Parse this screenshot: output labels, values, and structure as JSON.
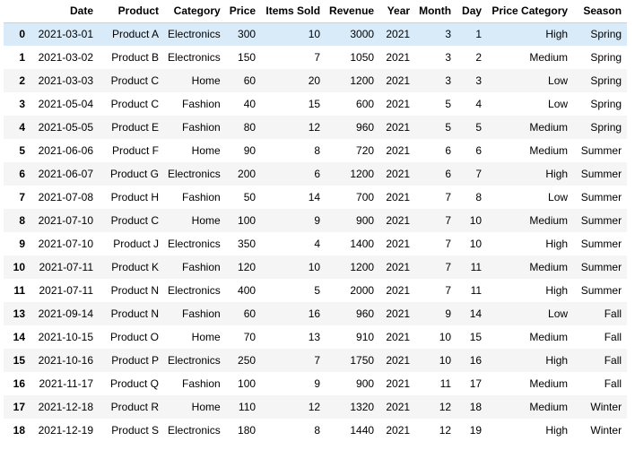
{
  "table": {
    "index_header": "",
    "columns": [
      "Date",
      "Product",
      "Category",
      "Price",
      "Items Sold",
      "Revenue",
      "Year",
      "Month",
      "Day",
      "Price Category",
      "Season"
    ],
    "highlighted_row": 0,
    "rows": [
      {
        "index": "0",
        "cells": [
          "2021-03-01",
          "Product A",
          "Electronics",
          "300",
          "10",
          "3000",
          "2021",
          "3",
          "1",
          "High",
          "Spring"
        ]
      },
      {
        "index": "1",
        "cells": [
          "2021-03-02",
          "Product B",
          "Electronics",
          "150",
          "7",
          "1050",
          "2021",
          "3",
          "2",
          "Medium",
          "Spring"
        ]
      },
      {
        "index": "2",
        "cells": [
          "2021-03-03",
          "Product C",
          "Home",
          "60",
          "20",
          "1200",
          "2021",
          "3",
          "3",
          "Low",
          "Spring"
        ]
      },
      {
        "index": "3",
        "cells": [
          "2021-05-04",
          "Product C",
          "Fashion",
          "40",
          "15",
          "600",
          "2021",
          "5",
          "4",
          "Low",
          "Spring"
        ]
      },
      {
        "index": "4",
        "cells": [
          "2021-05-05",
          "Product E",
          "Fashion",
          "80",
          "12",
          "960",
          "2021",
          "5",
          "5",
          "Medium",
          "Spring"
        ]
      },
      {
        "index": "5",
        "cells": [
          "2021-06-06",
          "Product F",
          "Home",
          "90",
          "8",
          "720",
          "2021",
          "6",
          "6",
          "Medium",
          "Summer"
        ]
      },
      {
        "index": "6",
        "cells": [
          "2021-06-07",
          "Product G",
          "Electronics",
          "200",
          "6",
          "1200",
          "2021",
          "6",
          "7",
          "High",
          "Summer"
        ]
      },
      {
        "index": "7",
        "cells": [
          "2021-07-08",
          "Product H",
          "Fashion",
          "50",
          "14",
          "700",
          "2021",
          "7",
          "8",
          "Low",
          "Summer"
        ]
      },
      {
        "index": "8",
        "cells": [
          "2021-07-10",
          "Product C",
          "Home",
          "100",
          "9",
          "900",
          "2021",
          "7",
          "10",
          "Medium",
          "Summer"
        ]
      },
      {
        "index": "9",
        "cells": [
          "2021-07-10",
          "Product J",
          "Electronics",
          "350",
          "4",
          "1400",
          "2021",
          "7",
          "10",
          "High",
          "Summer"
        ]
      },
      {
        "index": "10",
        "cells": [
          "2021-07-11",
          "Product K",
          "Fashion",
          "120",
          "10",
          "1200",
          "2021",
          "7",
          "11",
          "Medium",
          "Summer"
        ]
      },
      {
        "index": "11",
        "cells": [
          "2021-07-11",
          "Product N",
          "Electronics",
          "400",
          "5",
          "2000",
          "2021",
          "7",
          "11",
          "High",
          "Summer"
        ]
      },
      {
        "index": "13",
        "cells": [
          "2021-09-14",
          "Product N",
          "Fashion",
          "60",
          "16",
          "960",
          "2021",
          "9",
          "14",
          "Low",
          "Fall"
        ]
      },
      {
        "index": "14",
        "cells": [
          "2021-10-15",
          "Product O",
          "Home",
          "70",
          "13",
          "910",
          "2021",
          "10",
          "15",
          "Medium",
          "Fall"
        ]
      },
      {
        "index": "15",
        "cells": [
          "2021-10-16",
          "Product P",
          "Electronics",
          "250",
          "7",
          "1750",
          "2021",
          "10",
          "16",
          "High",
          "Fall"
        ]
      },
      {
        "index": "16",
        "cells": [
          "2021-11-17",
          "Product Q",
          "Fashion",
          "100",
          "9",
          "900",
          "2021",
          "11",
          "17",
          "Medium",
          "Fall"
        ]
      },
      {
        "index": "17",
        "cells": [
          "2021-12-18",
          "Product R",
          "Home",
          "110",
          "12",
          "1320",
          "2021",
          "12",
          "18",
          "Medium",
          "Winter"
        ]
      },
      {
        "index": "18",
        "cells": [
          "2021-12-19",
          "Product S",
          "Electronics",
          "180",
          "8",
          "1440",
          "2021",
          "12",
          "19",
          "High",
          "Winter"
        ]
      }
    ]
  },
  "colors": {
    "row_odd": "#f5f5f5",
    "row_even": "#ffffff",
    "row_hover": "#d9ebf9",
    "header_border": "#cfcfcf",
    "text": "#000000"
  }
}
